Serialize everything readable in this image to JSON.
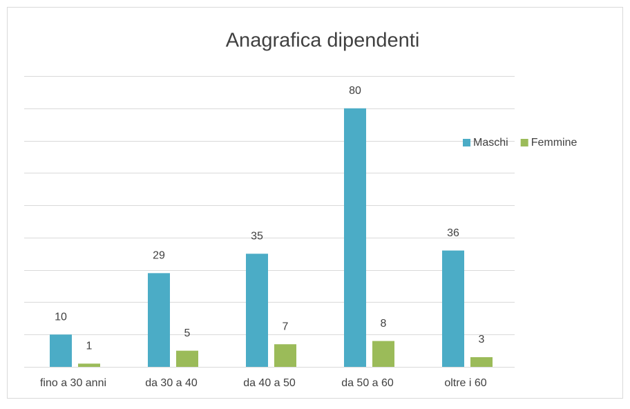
{
  "chart_data": {
    "type": "bar",
    "title": "Anagrafica dipendenti",
    "categories": [
      "fino a 30 anni",
      "da 30 a 40",
      "da 40 a 50",
      "da 50 a 60",
      "oltre i 60"
    ],
    "series": [
      {
        "name": "Maschi",
        "color": "#4bacc6",
        "values": [
          10,
          29,
          35,
          80,
          36
        ]
      },
      {
        "name": "Femmine",
        "color": "#9bbb59",
        "values": [
          1,
          5,
          7,
          8,
          3
        ]
      }
    ],
    "ylim": [
      0,
      90
    ],
    "yticks": [
      0,
      10,
      20,
      30,
      40,
      50,
      60,
      70,
      80,
      90
    ],
    "grid": true,
    "legend": "right"
  }
}
